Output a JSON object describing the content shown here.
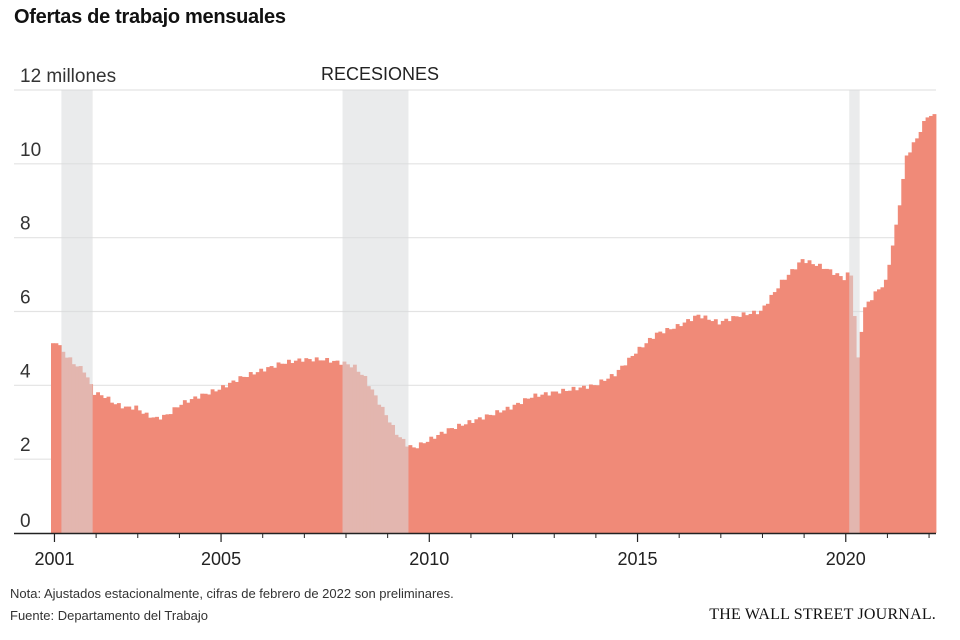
{
  "title": "Ofertas de trabajo mensuales",
  "note": "Nota: Ajustados estacionalmente, cifras de febrero de 2022 son preliminares.",
  "source": "Fuente: Departamento del Trabajo",
  "brand": "THE WALL STREET JOURNAL.",
  "colors": {
    "bars": "#f08a78",
    "recession": "#d9dadd",
    "grid": "#e3e3e3",
    "axis": "#222222"
  },
  "chart_data": {
    "type": "bar",
    "title": "Ofertas de trabajo mensuales",
    "y_unit_label": "12 millones",
    "recession_label": "RECESIONES",
    "xlim": [
      "2000-12",
      "2022-02"
    ],
    "ylim": [
      0,
      12
    ],
    "yticks": [
      0,
      2,
      4,
      6,
      8,
      10,
      12
    ],
    "ytick_labels": [
      "0",
      "2",
      "4",
      "6",
      "8",
      "10",
      "12 millones"
    ],
    "xticks": [
      2001,
      2005,
      2010,
      2015,
      2020
    ],
    "xtick_labels": [
      "2001",
      "2005",
      "2010",
      "2015",
      "2020"
    ],
    "grid": true,
    "recessions": [
      {
        "start": "2001-03",
        "end": "2001-11"
      },
      {
        "start": "2007-12",
        "end": "2009-06"
      },
      {
        "start": "2020-02",
        "end": "2020-04"
      }
    ],
    "series_anchors": [
      [
        "2000-12",
        5.1
      ],
      [
        "2001-01",
        5.2
      ],
      [
        "2001-03",
        4.9
      ],
      [
        "2001-06",
        4.6
      ],
      [
        "2001-09",
        4.4
      ],
      [
        "2001-12",
        3.8
      ],
      [
        "2002-03",
        3.7
      ],
      [
        "2002-06",
        3.5
      ],
      [
        "2002-09",
        3.4
      ],
      [
        "2002-12",
        3.4
      ],
      [
        "2003-03",
        3.2
      ],
      [
        "2003-06",
        3.1
      ],
      [
        "2003-09",
        3.2
      ],
      [
        "2004-01",
        3.5
      ],
      [
        "2004-06",
        3.7
      ],
      [
        "2004-12",
        3.9
      ],
      [
        "2005-06",
        4.2
      ],
      [
        "2005-12",
        4.4
      ],
      [
        "2006-06",
        4.6
      ],
      [
        "2006-12",
        4.7
      ],
      [
        "2007-06",
        4.7
      ],
      [
        "2007-12",
        4.6
      ],
      [
        "2008-03",
        4.5
      ],
      [
        "2008-06",
        4.2
      ],
      [
        "2008-09",
        3.7
      ],
      [
        "2008-12",
        3.2
      ],
      [
        "2009-03",
        2.7
      ],
      [
        "2009-06",
        2.4
      ],
      [
        "2009-08",
        2.3
      ],
      [
        "2009-12",
        2.5
      ],
      [
        "2010-06",
        2.8
      ],
      [
        "2010-12",
        3.0
      ],
      [
        "2011-06",
        3.2
      ],
      [
        "2011-12",
        3.4
      ],
      [
        "2012-06",
        3.7
      ],
      [
        "2012-12",
        3.8
      ],
      [
        "2013-06",
        3.9
      ],
      [
        "2013-12",
        4.0
      ],
      [
        "2014-06",
        4.3
      ],
      [
        "2014-12",
        4.9
      ],
      [
        "2015-06",
        5.4
      ],
      [
        "2015-12",
        5.6
      ],
      [
        "2016-06",
        5.9
      ],
      [
        "2016-12",
        5.7
      ],
      [
        "2017-06",
        5.9
      ],
      [
        "2017-12",
        6.0
      ],
      [
        "2018-06",
        6.8
      ],
      [
        "2018-12",
        7.4
      ],
      [
        "2019-06",
        7.2
      ],
      [
        "2019-12",
        6.9
      ],
      [
        "2020-01",
        7.0
      ],
      [
        "2020-02",
        7.0
      ],
      [
        "2020-03",
        5.9
      ],
      [
        "2020-04",
        4.7
      ],
      [
        "2020-05",
        5.5
      ],
      [
        "2020-06",
        6.1
      ],
      [
        "2020-09",
        6.5
      ],
      [
        "2020-12",
        6.8
      ],
      [
        "2021-03",
        8.3
      ],
      [
        "2021-06",
        10.2
      ],
      [
        "2021-09",
        10.7
      ],
      [
        "2021-12",
        11.3
      ],
      [
        "2022-02",
        11.3
      ]
    ]
  }
}
